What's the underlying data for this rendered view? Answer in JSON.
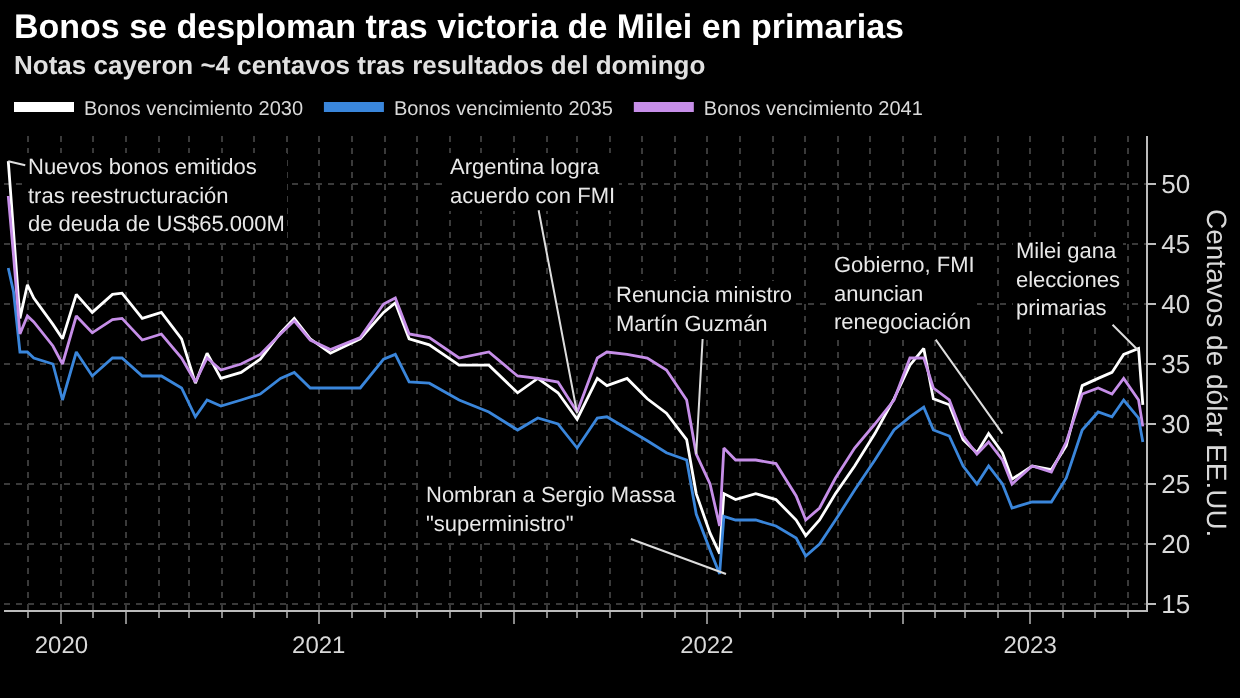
{
  "chart_data": {
    "type": "line",
    "title": "Bonos se desploman tras victoria de Milei en primarias",
    "subtitle": "Notas cayeron ~4 centavos tras resultados del domingo",
    "ylabel": "Centavos de dólar EE.UU.",
    "x": [
      "2020-09-12",
      "2020-09-17",
      "2020-09-23",
      "2020-09-30",
      "2020-10-06",
      "2020-10-24",
      "2020-11-02",
      "2020-11-15",
      "2020-11-30",
      "2020-12-19",
      "2020-12-28",
      "2021-01-16",
      "2021-02-03",
      "2021-02-22",
      "2021-03-07",
      "2021-03-18",
      "2021-03-31",
      "2021-04-19",
      "2021-05-07",
      "2021-05-26",
      "2021-06-08",
      "2021-06-23",
      "2021-07-12",
      "2021-08-09",
      "2021-08-31",
      "2021-09-11",
      "2021-09-24",
      "2021-10-13",
      "2021-11-10",
      "2021-12-08",
      "2022-01-04",
      "2022-01-23",
      "2022-02-11",
      "2022-03-01",
      "2022-03-20",
      "2022-03-29",
      "2022-04-17",
      "2022-05-06",
      "2022-05-24",
      "2022-06-12",
      "2022-06-21",
      "2022-07-04",
      "2022-07-13",
      "2022-07-17",
      "2022-07-28",
      "2022-08-16",
      "2022-09-04",
      "2022-09-23",
      "2022-10-02",
      "2022-10-15",
      "2022-10-30",
      "2022-11-17",
      "2022-12-06",
      "2022-12-24",
      "2023-01-08",
      "2023-01-21",
      "2023-01-30",
      "2023-02-14",
      "2023-02-27",
      "2023-03-12",
      "2023-03-23",
      "2023-04-05",
      "2023-04-14",
      "2023-05-03",
      "2023-05-21",
      "2023-06-04",
      "2023-06-19",
      "2023-07-04",
      "2023-07-17",
      "2023-07-28",
      "2023-08-11",
      "2023-08-15"
    ],
    "series": [
      {
        "name": "Bonos vencimiento 2030",
        "color": "#ffffff",
        "values": [
          51.9,
          46,
          38.8,
          41.6,
          40.5,
          38.3,
          37.1,
          40.8,
          39.3,
          40.8,
          40.9,
          38.8,
          39.3,
          37.1,
          33.4,
          35.9,
          33.8,
          34.3,
          35.4,
          37.6,
          38.8,
          37.1,
          35.9,
          37.1,
          39.3,
          40.1,
          37.1,
          36.6,
          34.9,
          34.9,
          32.6,
          33.8,
          32.6,
          30.4,
          33.8,
          33.2,
          33.8,
          32.1,
          30.9,
          28.7,
          24.2,
          20.9,
          19.2,
          24.2,
          23.7,
          24.2,
          23.7,
          22,
          20.7,
          22,
          24.2,
          26.5,
          29.2,
          32.1,
          34.9,
          36.3,
          32.1,
          31.6,
          28.7,
          27.6,
          29.2,
          27.6,
          25.4,
          26.5,
          26.2,
          28.2,
          33.2,
          33.8,
          34.3,
          35.8,
          36.3,
          31.6
        ]
      },
      {
        "name": "Bonos vencimiento 2035",
        "color": "#3a86db",
        "values": [
          43,
          41,
          36,
          36,
          35.5,
          35,
          32,
          36,
          34,
          35.5,
          35.5,
          34,
          34,
          33,
          30.6,
          32,
          31.5,
          32,
          32.5,
          33.8,
          34.3,
          33,
          33,
          33,
          35.4,
          35.8,
          33.5,
          33.4,
          32,
          31,
          29.5,
          30.5,
          30,
          28,
          30.5,
          30.6,
          29.6,
          28.6,
          27.6,
          27,
          22.5,
          19.5,
          17.5,
          22.3,
          22,
          22,
          21.5,
          20.5,
          19,
          20,
          22,
          24.5,
          27,
          29.5,
          30.6,
          31.4,
          29.5,
          29,
          26.5,
          25,
          26.5,
          25,
          23,
          23.5,
          23.5,
          25.5,
          29.5,
          31,
          30.6,
          32,
          30.5,
          28.5
        ]
      },
      {
        "name": "Bonos vencimiento 2041",
        "color": "#c68ee8",
        "values": [
          49,
          44,
          37.5,
          39,
          38.5,
          36.5,
          35,
          39,
          37.6,
          38.7,
          38.8,
          37,
          37.5,
          35.5,
          33.5,
          35.5,
          34.5,
          35,
          35.8,
          37.5,
          38.6,
          37,
          36.2,
          37.2,
          40,
          40.5,
          37.5,
          37.2,
          35.5,
          36,
          34,
          33.8,
          33.5,
          31,
          35.5,
          36,
          35.8,
          35.5,
          34.5,
          32,
          27.5,
          25,
          21.5,
          28,
          27,
          27,
          26.7,
          24,
          22,
          23,
          25.5,
          28,
          30,
          32,
          35.5,
          35.5,
          33,
          32,
          29,
          27.5,
          28.5,
          27,
          25,
          26.5,
          26,
          28.5,
          32.5,
          33,
          32.5,
          33.8,
          32,
          29.8
        ]
      }
    ],
    "xlim": [
      "2020-09-08",
      "2023-08-18"
    ],
    "xticks": [
      {
        "value": "2020-11-01",
        "label": "2020"
      },
      {
        "value": "2021-01-01",
        "label": null
      },
      {
        "value": "2021-07-01",
        "label": "2021"
      },
      {
        "value": "2022-01-01",
        "label": null
      },
      {
        "value": "2022-07-01",
        "label": "2022"
      },
      {
        "value": "2023-01-01",
        "label": null
      },
      {
        "value": "2023-05-01",
        "label": "2023"
      }
    ],
    "ylim": [
      14.5,
      54
    ],
    "yticks": [
      15,
      20,
      25,
      30,
      35,
      40,
      45,
      50
    ],
    "grid": true,
    "legend": "top left",
    "annotations": [
      {
        "text": "Nuevos bonos emitidos\ntras reestructuración\nde deuda de US$65.000M",
        "x": "2020-09-12",
        "y": 51.9
      },
      {
        "text": "Argentina logra\nacuerdo con FMI",
        "x": "2022-03-01",
        "y": 30.9
      },
      {
        "text": "Renuncia ministro\nMartín Guzmán",
        "x": "2022-06-21",
        "y": 27.5
      },
      {
        "text": "Nombran a Sergio Massa\n\"superministro\"",
        "x": "2022-07-19",
        "y": 17.5
      },
      {
        "text": "Gobierno, FMI\nanuncian\nrenegociación",
        "x": "2023-04-05",
        "y": 29.2
      },
      {
        "text": "Milei gana\nelecciones\nprimarias",
        "x": "2023-08-11",
        "y": 36.1
      }
    ]
  }
}
